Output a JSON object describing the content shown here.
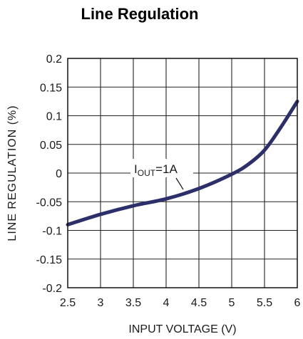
{
  "chart_data": {
    "type": "line",
    "title": "Line Regulation",
    "xlabel": "INPUT VOLTAGE (V)",
    "ylabel": "LINE REGULATION (%)",
    "xlim": [
      2.5,
      6
    ],
    "ylim": [
      -0.2,
      0.2
    ],
    "xticks": [
      2.5,
      3,
      3.5,
      4,
      4.5,
      5,
      5.5,
      6
    ],
    "xtick_labels": [
      "2.5",
      "3",
      "3.5",
      "4",
      "4.5",
      "5",
      "5.5",
      "6"
    ],
    "yticks": [
      0.2,
      0.15,
      0.1,
      0.05,
      0,
      -0.05,
      -0.1,
      -0.15,
      -0.2
    ],
    "ytick_labels": [
      "0.2",
      "0.15",
      "0.1",
      "0.05",
      "0",
      "-0.05",
      "-0.1",
      "-0.15",
      "-0.2"
    ],
    "grid": true,
    "series": [
      {
        "color": "#2d2f6b",
        "x": [
          2.5,
          3.0,
          3.5,
          4.0,
          4.5,
          5.0,
          5.25,
          5.5,
          5.75,
          6.0
        ],
        "y": [
          -0.09,
          -0.072,
          -0.057,
          -0.045,
          -0.027,
          -0.002,
          0.015,
          0.04,
          0.08,
          0.125
        ]
      }
    ],
    "annotation": {
      "main": "I",
      "sub": "OUT",
      "suffix": "=1A"
    }
  }
}
